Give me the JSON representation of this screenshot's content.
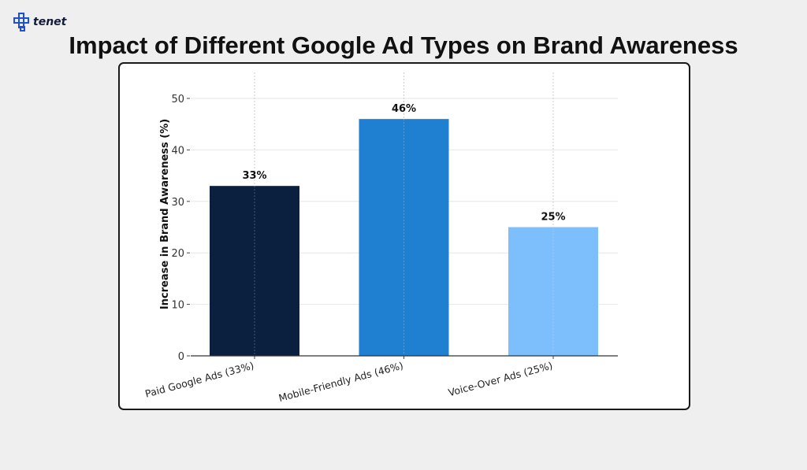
{
  "logo": {
    "text": "tenet",
    "icon": "tenet-logo-icon"
  },
  "chart_data": {
    "type": "bar",
    "title": "Impact of Different Google Ad Types on Brand Awareness",
    "xlabel": "",
    "ylabel": "Increase in Brand Awareness (%)",
    "categories": [
      "Paid Google Ads (33%)",
      "Mobile-Friendly Ads (46%)",
      "Voice-Over Ads (25%)"
    ],
    "values": [
      33,
      46,
      25
    ],
    "data_labels": [
      "33%",
      "46%",
      "25%"
    ],
    "colors": [
      "#0b1f3f",
      "#1f7fd1",
      "#7dbefc"
    ],
    "ylim": [
      0,
      55
    ],
    "yticks": [
      0,
      10,
      20,
      30,
      40,
      50
    ],
    "grid": true,
    "legend": "none"
  }
}
